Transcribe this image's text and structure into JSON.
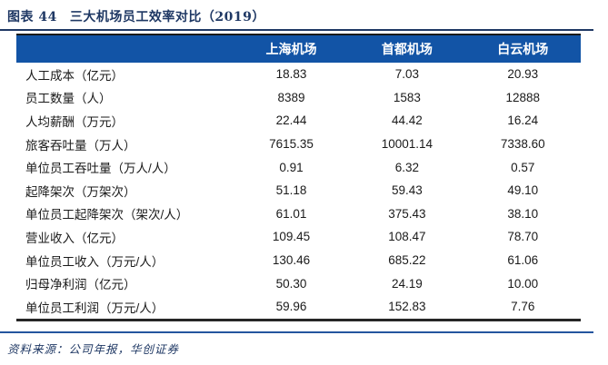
{
  "caption": {
    "label": "图表 44",
    "title": "三大机场员工效率对比（2019）"
  },
  "source": {
    "text": "资料来源：公司年报，华创证券"
  },
  "colors": {
    "header_bg": "#1254A6",
    "caption_navy": "#1F3864",
    "rule_navy": "#24559E",
    "table_border": "#1A1A1A",
    "body_text": "#1A1A1A",
    "header_text": "#FFFFFF"
  },
  "chart_data": {
    "type": "table",
    "title": "图表 44 三大机场员工效率对比（2019）",
    "columns": [
      "",
      "上海机场",
      "首都机场",
      "白云机场"
    ],
    "rows": [
      {
        "label": "人工成本（亿元）",
        "values": [
          "18.83",
          "7.03",
          "20.93"
        ]
      },
      {
        "label": "员工数量（人）",
        "values": [
          "8389",
          "1583",
          "12888"
        ]
      },
      {
        "label": "人均薪酬（万元）",
        "values": [
          "22.44",
          "44.42",
          "16.24"
        ]
      },
      {
        "label": "旅客吞吐量（万人）",
        "values": [
          "7615.35",
          "10001.14",
          "7338.60"
        ]
      },
      {
        "label": "单位员工吞吐量（万人/人）",
        "values": [
          "0.91",
          "6.32",
          "0.57"
        ]
      },
      {
        "label": "起降架次（万架次）",
        "values": [
          "51.18",
          "59.43",
          "49.10"
        ]
      },
      {
        "label": "单位员工起降架次（架次/人）",
        "values": [
          "61.01",
          "375.43",
          "38.10"
        ]
      },
      {
        "label": "营业收入（亿元）",
        "values": [
          "109.45",
          "108.47",
          "78.70"
        ]
      },
      {
        "label": "单位员工收入（万元/人）",
        "values": [
          "130.46",
          "685.22",
          "61.06"
        ]
      },
      {
        "label": "归母净利润（亿元）",
        "values": [
          "50.30",
          "24.19",
          "10.00"
        ]
      },
      {
        "label": "单位员工利润（万元/人）",
        "values": [
          "59.96",
          "152.83",
          "7.76"
        ]
      }
    ]
  }
}
